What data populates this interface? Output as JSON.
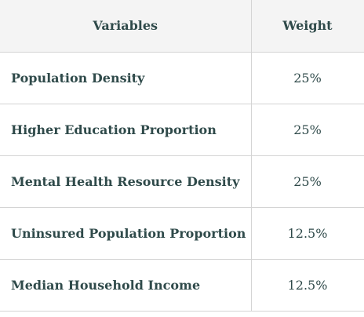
{
  "table": {
    "headers": [
      "Variables",
      "Weight"
    ],
    "rows": [
      {
        "variable": "Population Density",
        "weight": "25%"
      },
      {
        "variable": "Higher Education Proportion",
        "weight": "25%"
      },
      {
        "variable": "Mental Health Resource Density",
        "weight": "25%"
      },
      {
        "variable": "Uninsured Population Proportion",
        "weight": "12.5%"
      },
      {
        "variable": "Median Household Income",
        "weight": "12.5%"
      }
    ]
  }
}
